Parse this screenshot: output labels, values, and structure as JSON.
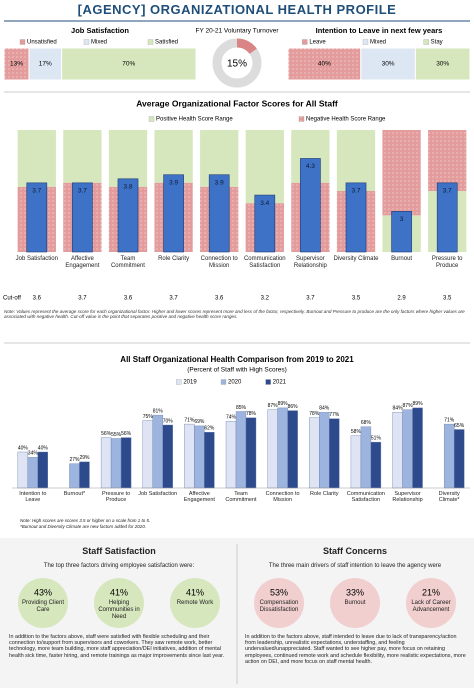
{
  "page_title": "[AGENCY] ORGANIZATIONAL HEALTH PROFILE",
  "chart_data": [
    {
      "type": "stacked-bar",
      "title": "Job Satisfaction",
      "series": [
        {
          "name": "Unsatisfied",
          "color": "#e39b9b",
          "values": [
            13
          ],
          "value_labels": [
            "13%"
          ]
        },
        {
          "name": "Mixed",
          "color": "#dde7f4",
          "values": [
            17
          ],
          "value_labels": [
            "17%"
          ]
        },
        {
          "name": "Satisfied",
          "color": "#d6e7bd",
          "values": [
            70
          ],
          "value_labels": [
            "70%"
          ]
        }
      ]
    },
    {
      "type": "donut",
      "title": "FY 20-21 Voluntary Turnover",
      "values": [
        15
      ],
      "value_labels": [
        "15%"
      ],
      "color": "#d98585"
    },
    {
      "type": "stacked-bar",
      "title": "Intention to Leave in next few years",
      "series": [
        {
          "name": "Leave",
          "color": "#e39b9b",
          "values": [
            40
          ],
          "value_labels": [
            "40%"
          ]
        },
        {
          "name": "Mixed",
          "color": "#dde7f4",
          "values": [
            30
          ],
          "value_labels": [
            "30%"
          ]
        },
        {
          "name": "Stay",
          "color": "#d6e7bd",
          "values": [
            30
          ],
          "value_labels": [
            "30%"
          ]
        }
      ]
    },
    {
      "type": "range-bar",
      "title": "Average Organizational Factor Scores for All Staff",
      "categories": [
        "Job Satisfaction",
        "Affective Engagement",
        "Team Commitment",
        "Role Clarity",
        "Connection to Mission",
        "Communication Satisfaction",
        "Supervisor Relationship",
        "Diversity Climate",
        "Burnout",
        "Pressure to Produce"
      ],
      "values": [
        3.7,
        3.7,
        3.8,
        3.9,
        3.9,
        3.4,
        4.3,
        3.7,
        3.0,
        3.7
      ],
      "color": "#3d72c7",
      "ylim": [
        2,
        5
      ],
      "cutoff_label": "Cut-off",
      "cutoffs": [
        3.6,
        3.7,
        3.6,
        3.7,
        3.6,
        3.2,
        3.7,
        3.5,
        2.9,
        3.5
      ],
      "negative_above": [
        false,
        false,
        false,
        false,
        false,
        false,
        false,
        false,
        true,
        true
      ],
      "ranges": [
        {
          "name": "Positive Health Score Range",
          "color": "#d6e7bd"
        },
        {
          "name": "Negative Health Score Range",
          "color": "#e39b9b"
        }
      ],
      "note": "Note: Values represent the average score for each organizational factor. Higher and lower scores represent more and less of the factor, respectively. Burnout and Pressure to produce are the only factors where higher values are associated with negative health. Cut-off value is the point that separates positive and negative health score ranges."
    },
    {
      "type": "grouped-bar",
      "title": "All Staff Organizational Health Comparison from 2019 to 2021",
      "subtitle": "(Percent of Staff with High Scores)",
      "categories": [
        "Intention to Leave",
        "Burnout*",
        "Pressure to Produce",
        "Job Satisfaction",
        "Affective Engagement",
        "Team Commitment",
        "Connection to Mission",
        "Role Clarity",
        "Communication Satisfaction",
        "Supervisor Relationship",
        "Diversity Climate*"
      ],
      "series": [
        {
          "name": "2019",
          "color": "#dfe4f4",
          "values": [
            40,
            null,
            56,
            75,
            71,
            74,
            87,
            78,
            58,
            84,
            null
          ],
          "value_labels": [
            "40%",
            null,
            "56%",
            "75%",
            "71%",
            "74%",
            "87%",
            "78%",
            "58%",
            "84%",
            null
          ]
        },
        {
          "name": "2020",
          "color": "#9db5de",
          "values": [
            34,
            27,
            55,
            81,
            69,
            85,
            89,
            84,
            68,
            87,
            71
          ],
          "value_labels": [
            "34%",
            "27%",
            "55%",
            "81%",
            "69%",
            "85%",
            "89%",
            "84%",
            "68%",
            "87%",
            "71%"
          ]
        },
        {
          "name": "2021",
          "color": "#2c4a8c",
          "values": [
            40,
            29,
            56,
            70,
            62,
            78,
            86,
            77,
            51,
            89,
            65
          ],
          "value_labels": [
            "40%",
            "29%",
            "56%",
            "70%",
            "62%",
            "78%",
            "86%",
            "77%",
            "51%",
            "89%",
            "65%"
          ]
        }
      ],
      "ylim": [
        0,
        100
      ],
      "notes": [
        "Note: High scores are scores 3.5 or higher on a scale from 1 to 5.",
        "*Burnout and Diversity Climate are new factors added for 2020."
      ]
    }
  ],
  "staff_satisfaction": {
    "title": "Staff Satisfaction",
    "intro": "The top three factors driving employee satisfaction were:",
    "factors": [
      {
        "value": "43%",
        "label": "Providing Client Care"
      },
      {
        "value": "41%",
        "label": "Helping Communities in Need"
      },
      {
        "value": "41%",
        "label": "Remote Work"
      }
    ],
    "text": "In addition to the factors above, staff were satisfied with flexible scheduling and their connection to/support from supervisors and coworkers. They saw remote work, better technology, more team building, more staff appreciation/DEI initiatives, addition of mental health sick time, faster hiring, and remote trainings as major improvements since last year."
  },
  "staff_concerns": {
    "title": "Staff Concerns",
    "intro": "The three main drivers of staff intention to leave the agency were",
    "factors": [
      {
        "value": "53%",
        "label": "Compensation Dissatisfaction"
      },
      {
        "value": "33%",
        "label": "Burnout"
      },
      {
        "value": "21%",
        "label": "Lack of Career Advancement"
      }
    ],
    "text": "In addition to the factors above, staff intended to leave due to lack of transparency/action from leadership, unrealistic expectations, understaffing, and feeling undervalued/unappreciated. Staff wanted to see higher pay, more focus on retaining employees, continued remote work and schedule flexibility, more realistic expectations, more action on DEI, and more focus on staff mental health."
  }
}
